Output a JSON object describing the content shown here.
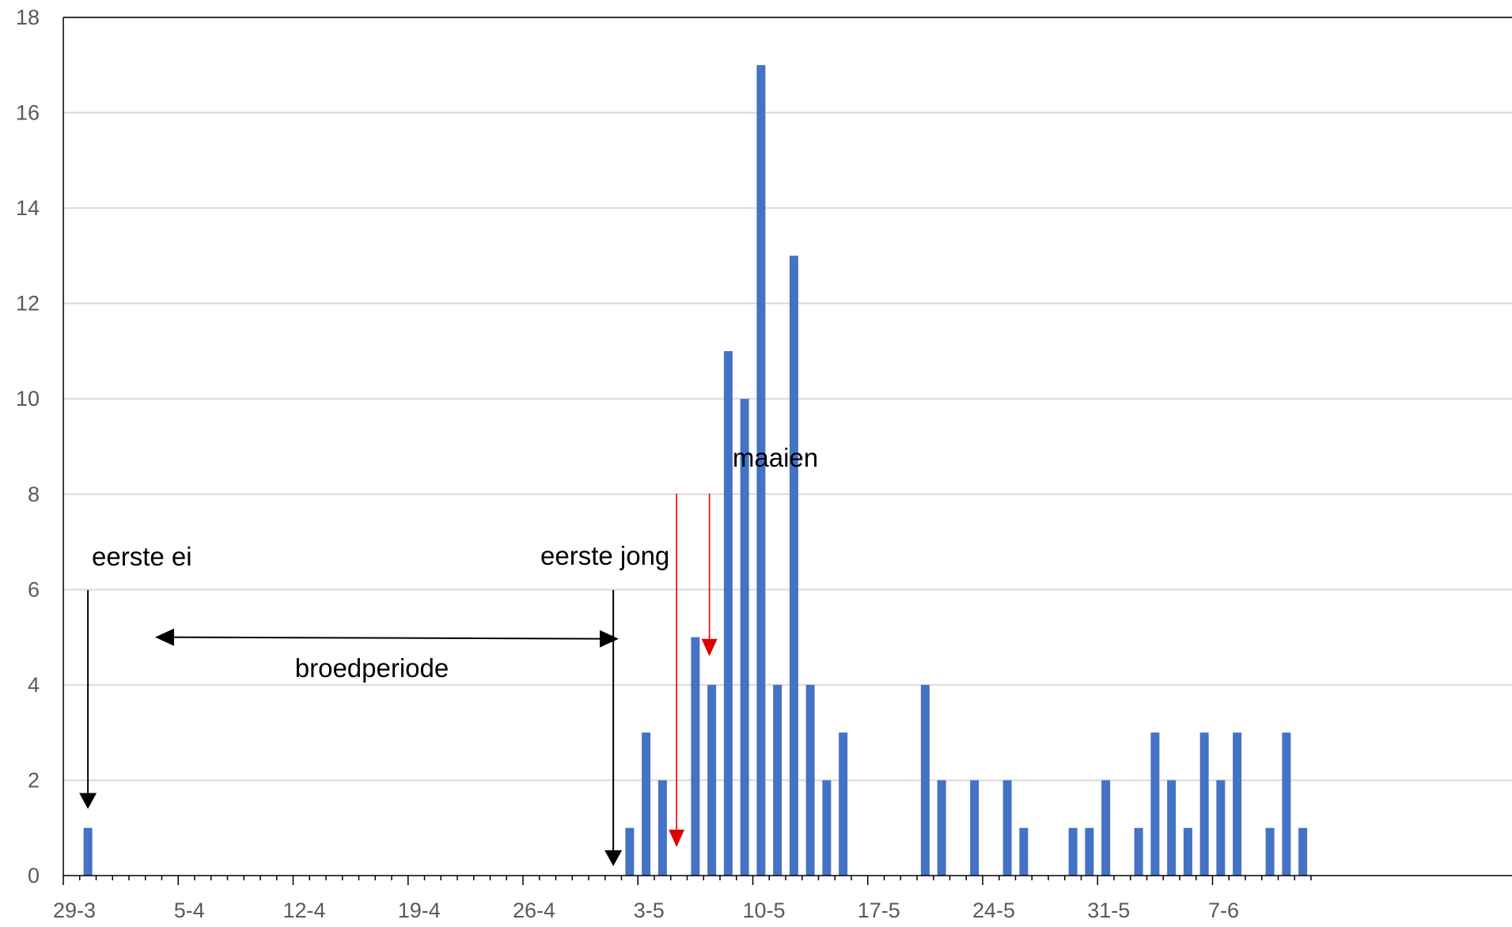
{
  "chart_data": {
    "type": "bar",
    "xaxis_type": "date",
    "x_start": "29-3",
    "x_end": "12-6",
    "x_tick_labels": [
      "29-3",
      "5-4",
      "12-4",
      "19-4",
      "26-4",
      "3-5",
      "10-5",
      "17-5",
      "24-5",
      "31-5",
      "7-6"
    ],
    "ylim": [
      0,
      18
    ],
    "y_tick_labels": [
      "0",
      "2",
      "4",
      "6",
      "8",
      "10",
      "12",
      "14",
      "16",
      "18"
    ],
    "grid": true,
    "legend": "none",
    "bar_color": "#4472C4",
    "series": [
      {
        "x": [
          "30-3",
          "2-5",
          "3-5",
          "4-5",
          "6-5",
          "7-5",
          "8-5",
          "9-5",
          "10-5",
          "11-5",
          "12-5",
          "13-5",
          "14-5",
          "15-5",
          "20-5",
          "21-5",
          "23-5",
          "25-5",
          "26-5",
          "29-5",
          "30-5",
          "31-5",
          "2-6",
          "3-6",
          "4-6",
          "5-6",
          "6-6",
          "7-6",
          "8-6",
          "10-6",
          "11-6",
          "12-6"
        ],
        "values": [
          1,
          1,
          3,
          2,
          5,
          4,
          11,
          10,
          17,
          4,
          13,
          4,
          2,
          3,
          4,
          2,
          2,
          2,
          1,
          1,
          1,
          2,
          1,
          3,
          2,
          1,
          3,
          2,
          3,
          1,
          3,
          1
        ]
      }
    ],
    "annotations": [
      {
        "id": "eerste-ei",
        "text": "eerste ei",
        "x": "30-3",
        "arrow_to_y": 1.4,
        "arrow_from_y": 6,
        "color": "#000000"
      },
      {
        "id": "eerste-jong",
        "text": "eerste jong",
        "x": "1-5",
        "arrow_to_y": 0.2,
        "arrow_from_y": 6,
        "color": "#000000"
      },
      {
        "id": "broedperiode",
        "text": "broedperiode",
        "x_from": "2-4",
        "x_to": "26-4",
        "y": 5.0,
        "color": "#000000"
      },
      {
        "id": "maaien",
        "text": "maaien",
        "x_list": [
          "5-5",
          "7-5"
        ],
        "arrow_to_y_list": [
          0.6,
          4.6
        ],
        "arrow_from_y": 8,
        "color": "#E00000"
      }
    ]
  }
}
